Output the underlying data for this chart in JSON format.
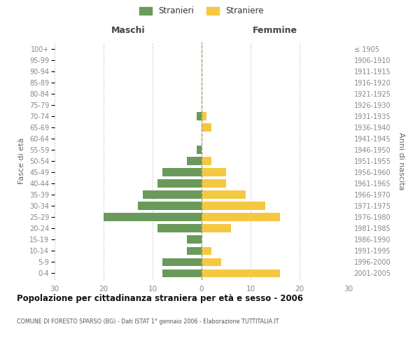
{
  "age_groups": [
    "0-4",
    "5-9",
    "10-14",
    "15-19",
    "20-24",
    "25-29",
    "30-34",
    "35-39",
    "40-44",
    "45-49",
    "50-54",
    "55-59",
    "60-64",
    "65-69",
    "70-74",
    "75-79",
    "80-84",
    "85-89",
    "90-94",
    "95-99",
    "100+"
  ],
  "birth_years": [
    "2001-2005",
    "1996-2000",
    "1991-1995",
    "1986-1990",
    "1981-1985",
    "1976-1980",
    "1971-1975",
    "1966-1970",
    "1961-1965",
    "1956-1960",
    "1951-1955",
    "1946-1950",
    "1941-1945",
    "1936-1940",
    "1931-1935",
    "1926-1930",
    "1921-1925",
    "1916-1920",
    "1911-1915",
    "1906-1910",
    "≤ 1905"
  ],
  "maschi": [
    8,
    8,
    3,
    3,
    9,
    20,
    13,
    12,
    9,
    8,
    3,
    1,
    0,
    0,
    1,
    0,
    0,
    0,
    0,
    0,
    0
  ],
  "femmine": [
    16,
    4,
    2,
    0,
    6,
    16,
    13,
    9,
    5,
    5,
    2,
    0,
    0,
    2,
    1,
    0,
    0,
    0,
    0,
    0,
    0
  ],
  "male_color": "#6a9a5b",
  "female_color": "#f5c842",
  "title": "Popolazione per cittadinanza straniera per età e sesso - 2006",
  "subtitle": "COMUNE DI FORESTO SPARSO (BG) - Dati ISTAT 1° gennaio 2006 - Elaborazione TUTTITALIA.IT",
  "xlabel_left": "Maschi",
  "xlabel_right": "Femmine",
  "ylabel_left": "Fasce di età",
  "ylabel_right": "Anni di nascita",
  "legend_male": "Stranieri",
  "legend_female": "Straniere",
  "xlim": 30,
  "bg_color": "#ffffff",
  "grid_color": "#cccccc",
  "axis_label_color": "#666666",
  "tick_label_color": "#888888"
}
